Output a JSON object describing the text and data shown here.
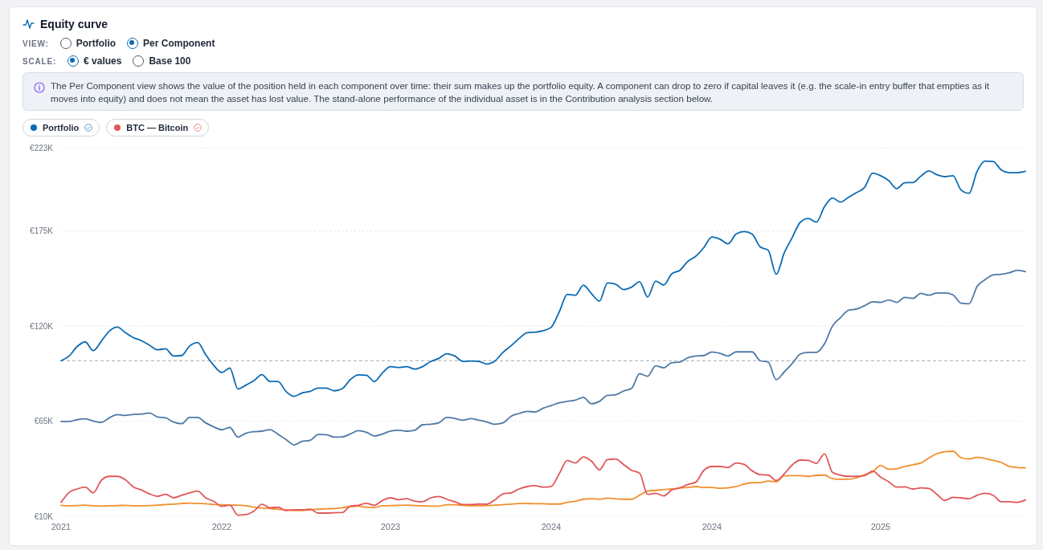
{
  "chart_data": {
    "type": "line",
    "title": "Equity curve",
    "annotations": [
      "VIEW:",
      "Portfolio",
      "Per Component",
      "SCALE:",
      "€ values",
      "Base 100",
      "The Per Component view shows the value of the position held in each component over time: their sum makes up the portfolio equity. A component can drop to zero if capital leaves it (e.g. the scale-in entry buffer that empties as it moves into equity) and does not mean the asset has lost value. The stand-alone performance of the individual asset is in the Contribution analysis section below."
    ],
    "categories": [
      "2021",
      null,
      null,
      null,
      null,
      null,
      null,
      null,
      null,
      null,
      null,
      null,
      null,
      null,
      null,
      null,
      null,
      null,
      null,
      null,
      "2022",
      null,
      null,
      null,
      null,
      null,
      null,
      null,
      null,
      null,
      null,
      null,
      null,
      null,
      null,
      null,
      null,
      null,
      null,
      null,
      null,
      "2023",
      null,
      null,
      null,
      null,
      null,
      null,
      null,
      null,
      null,
      null,
      null,
      null,
      null,
      null,
      null,
      null,
      null,
      null,
      null,
      "2024",
      null,
      null,
      null,
      null,
      null,
      null,
      null,
      null,
      null,
      null,
      null,
      null,
      null,
      null,
      null,
      null,
      null,
      null,
      null,
      "2024",
      null,
      null,
      null,
      null,
      null,
      null,
      null,
      null,
      null,
      null,
      null,
      null,
      null,
      null,
      null,
      null,
      null,
      null,
      null,
      null,
      "2025",
      null,
      null,
      null,
      null,
      null,
      null,
      null,
      null,
      null,
      null,
      null,
      null,
      null,
      null,
      null,
      null,
      null,
      null
    ],
    "series": [
      {
        "name": "Portfolio",
        "color": "#0a6bb3",
        "values": [
          100.0,
          102.7,
          108.2,
          110.9,
          105.8,
          111.2,
          117.1,
          119.4,
          116.2,
          113.3,
          111.6,
          108.9,
          106.3,
          106.9,
          102.7,
          103.0,
          108.5,
          110.5,
          103.5,
          97.3,
          93.2,
          95.8,
          83.7,
          85.9,
          88.5,
          91.9,
          88.0,
          88.0,
          82.2,
          79.4,
          81.4,
          82.3,
          84.2,
          84.2,
          82.6,
          83.9,
          89.1,
          91.8,
          91.6,
          88.0,
          93.0,
          96.6,
          96.1,
          96.6,
          95.2,
          96.6,
          99.5,
          101.3,
          104.0,
          102.7,
          99.6,
          99.8,
          99.6,
          98.1,
          99.9,
          104.8,
          108.6,
          112.8,
          116.2,
          116.5,
          117.3,
          119.3,
          128.2,
          138.3,
          137.8,
          143.6,
          138.8,
          134.4,
          144.9,
          144.2,
          141.1,
          142.5,
          145.6,
          136.8,
          146.0,
          143.7,
          150.2,
          152.2,
          157.3,
          160.4,
          165.4,
          171.5,
          170.2,
          167.5,
          173.1,
          174.6,
          173.1,
          165.7,
          163.8,
          149.9,
          162.3,
          171.2,
          180.0,
          182.1,
          180.0,
          188.9,
          194.0,
          191.6,
          194.4,
          197.1,
          200.1,
          208.3,
          206.8,
          204.0,
          199.4,
          202.8,
          202.9,
          206.6,
          209.6,
          207.4,
          206.3,
          206.8,
          198.6,
          196.7,
          209.4,
          215.3,
          215.1,
          210.2,
          208.6,
          208.6,
          209.4
        ]
      },
      {
        "color": "#4e79a7",
        "values": [
          64.9,
          64.9,
          65.9,
          66.4,
          65.2,
          64.4,
          67.0,
          68.9,
          68.4,
          69.0,
          69.2,
          69.8,
          67.5,
          67.0,
          64.6,
          63.6,
          67.2,
          67.2,
          64.1,
          61.8,
          60.1,
          61.5,
          55.9,
          58.1,
          59.0,
          59.3,
          60.2,
          57.5,
          54.4,
          51.4,
          53.4,
          54.0,
          57.4,
          57.3,
          55.9,
          56.0,
          57.7,
          59.6,
          58.7,
          56.5,
          57.6,
          59.4,
          59.8,
          59.3,
          59.8,
          63.0,
          63.3,
          64.1,
          67.2,
          66.7,
          65.6,
          66.5,
          65.6,
          64.6,
          63.3,
          64.1,
          67.9,
          69.5,
          70.7,
          70.4,
          72.6,
          74.1,
          75.7,
          76.5,
          77.2,
          78.8,
          75.1,
          76.5,
          80.0,
          80.3,
          82.5,
          84.0,
          92.5,
          91.0,
          97.0,
          95.9,
          98.9,
          99.2,
          101.7,
          102.7,
          103.0,
          105.0,
          104.2,
          102.7,
          105.1,
          105.1,
          105.1,
          100.0,
          99.2,
          89.0,
          93.5,
          98.4,
          103.8,
          104.8,
          104.8,
          109.7,
          120.0,
          124.9,
          129.2,
          129.8,
          131.8,
          134.0,
          133.7,
          135.1,
          133.7,
          136.6,
          136.0,
          138.9,
          137.8,
          139.1,
          139.1,
          138.0,
          133.2,
          132.9,
          142.9,
          146.8,
          149.6,
          149.9,
          150.8,
          152.2,
          151.4
        ]
      },
      {
        "color": "#f28e2c",
        "values": [
          16.5,
          16.2,
          16.3,
          16.6,
          16.2,
          16.0,
          16.2,
          16.3,
          16.5,
          16.2,
          16.2,
          16.3,
          16.6,
          16.9,
          17.2,
          17.5,
          17.7,
          17.5,
          17.4,
          16.9,
          16.8,
          16.6,
          16.6,
          16.2,
          15.4,
          14.8,
          14.6,
          14.2,
          13.9,
          13.5,
          13.5,
          13.9,
          14.2,
          14.5,
          14.6,
          15.1,
          15.7,
          16.0,
          15.4,
          15.2,
          16.2,
          16.3,
          16.5,
          16.6,
          16.3,
          16.2,
          16.0,
          16.0,
          16.8,
          16.8,
          16.5,
          16.2,
          16.2,
          16.3,
          16.6,
          16.8,
          17.2,
          17.5,
          17.5,
          17.4,
          17.4,
          17.2,
          17.2,
          18.2,
          18.8,
          20.0,
          20.3,
          20.0,
          20.6,
          20.2,
          20.0,
          20.0,
          22.3,
          24.7,
          25.1,
          25.6,
          25.9,
          26.5,
          26.8,
          27.3,
          26.8,
          26.8,
          26.3,
          26.5,
          27.3,
          28.7,
          29.5,
          29.6,
          30.5,
          30.1,
          33.5,
          33.6,
          33.6,
          33.2,
          33.8,
          33.9,
          31.9,
          31.5,
          31.5,
          32.4,
          34.2,
          35.8,
          39.5,
          37.3,
          37.6,
          38.9,
          39.9,
          40.9,
          43.8,
          46.3,
          47.4,
          47.7,
          44.0,
          43.2,
          44.2,
          43.5,
          42.4,
          41.2,
          39.0,
          38.3,
          38.1
        ]
      },
      {
        "name": "BTC — Bitcoin",
        "color": "#e15759",
        "values": [
          18.2,
          23.9,
          25.9,
          27.0,
          23.7,
          30.8,
          33.2,
          33.2,
          31.2,
          27.1,
          25.4,
          23.1,
          21.7,
          22.8,
          20.8,
          22.3,
          23.7,
          24.7,
          20.8,
          18.8,
          15.9,
          16.6,
          10.8,
          11.1,
          13.1,
          17.0,
          15.1,
          15.4,
          13.5,
          13.9,
          13.9,
          14.2,
          12.0,
          12.0,
          12.2,
          12.3,
          16.0,
          16.5,
          17.6,
          16.5,
          19.3,
          20.8,
          19.7,
          20.3,
          18.9,
          18.5,
          20.8,
          21.6,
          20.0,
          18.5,
          16.9,
          16.9,
          17.2,
          17.1,
          19.7,
          23.1,
          23.7,
          25.9,
          27.3,
          27.8,
          27.0,
          27.4,
          34.7,
          42.4,
          40.9,
          44.4,
          42.0,
          37.0,
          42.9,
          43.2,
          40.1,
          36.7,
          35.0,
          22.8,
          23.4,
          21.9,
          25.3,
          26.5,
          28.5,
          29.9,
          36.7,
          38.9,
          38.9,
          38.3,
          40.9,
          40.1,
          36.4,
          34.2,
          33.9,
          30.8,
          34.7,
          39.8,
          42.6,
          42.4,
          40.7,
          46.3,
          35.5,
          33.9,
          33.2,
          33.2,
          33.6,
          36.3,
          32.7,
          30.1,
          27.0,
          27.1,
          25.9,
          26.5,
          26.2,
          22.8,
          19.3,
          21.1,
          20.8,
          20.3,
          22.3,
          23.4,
          22.3,
          18.5,
          18.5,
          18.2,
          19.6
        ]
      }
    ],
    "ylim": [
      10,
      223
    ],
    "yticks": [
      {
        "value": 10,
        "label": "€10K"
      },
      {
        "value": 65,
        "label": "€65K"
      },
      {
        "value": 120,
        "label": "€120K"
      },
      {
        "value": 175,
        "label": "€175K"
      },
      {
        "value": 223,
        "label": "€223K"
      }
    ],
    "ref_lines": [
      {
        "axis": "y",
        "value": 100,
        "color": "#a3a9b1",
        "line_style": "dashed"
      }
    ],
    "grid": "y",
    "legend": "top left"
  }
}
